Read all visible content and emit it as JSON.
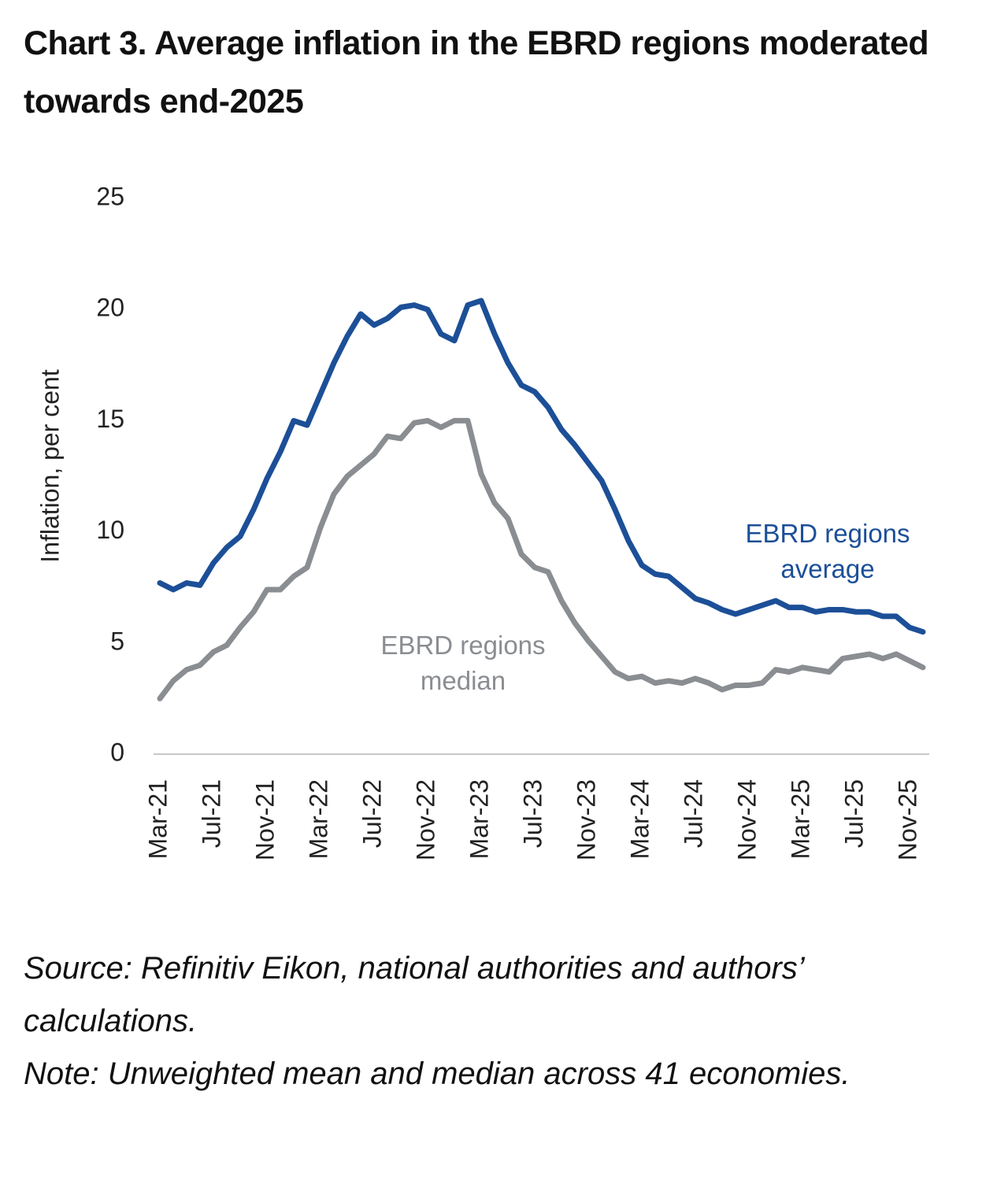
{
  "chart_data": {
    "type": "line",
    "title": "Chart 3. Average inflation in the EBRD regions moderated towards end-2025",
    "ylabel": "Inflation, per cent",
    "source": "Source: Refinitiv Eikon, national authorities and authors’ calculations.",
    "note": "Note: Unweighted mean and median across 41 economies.",
    "categories": [
      "Mar-21",
      null,
      null,
      null,
      "Jul-21",
      null,
      null,
      null,
      "Nov-21",
      null,
      null,
      null,
      "Mar-22",
      null,
      null,
      null,
      "Jul-22",
      null,
      null,
      null,
      "Nov-22",
      null,
      null,
      null,
      "Mar-23",
      null,
      null,
      null,
      "Jul-23",
      null,
      null,
      null,
      "Nov-23",
      null,
      null,
      null,
      "Mar-24",
      null,
      null,
      null,
      "Jul-24",
      null,
      null,
      null,
      "Nov-24",
      null,
      null,
      null,
      "Mar-25",
      null,
      null,
      null,
      "Jul-25",
      null,
      null,
      null,
      "Nov-25",
      null
    ],
    "series": [
      {
        "name": "EBRD regions average",
        "color": "#1c4f97",
        "values": [
          7.7,
          7.4,
          7.7,
          7.6,
          8.6,
          9.3,
          9.8,
          11.0,
          12.4,
          13.6,
          15.0,
          14.8,
          16.2,
          17.6,
          18.8,
          19.8,
          19.3,
          19.6,
          20.1,
          20.2,
          20.0,
          18.9,
          18.6,
          20.2,
          20.4,
          18.9,
          17.6,
          16.6,
          16.3,
          15.6,
          14.6,
          13.9,
          13.1,
          12.3,
          11.0,
          9.6,
          8.5,
          8.1,
          8.0,
          7.5,
          7.0,
          6.8,
          6.5,
          6.3,
          6.5,
          6.7,
          6.9,
          6.6,
          6.6,
          6.4,
          6.5,
          6.5,
          6.4,
          6.4,
          6.2,
          6.2,
          5.7,
          5.5
        ]
      },
      {
        "name": "EBRD regions median",
        "color": "#8a8d91",
        "values": [
          2.5,
          3.3,
          3.8,
          4.0,
          4.6,
          4.9,
          5.7,
          6.4,
          7.4,
          7.4,
          8.0,
          8.4,
          10.2,
          11.7,
          12.5,
          13.0,
          13.5,
          14.3,
          14.2,
          14.9,
          15.0,
          14.7,
          15.0,
          15.0,
          12.6,
          11.3,
          10.6,
          9.0,
          8.4,
          8.2,
          6.9,
          5.9,
          5.1,
          4.4,
          3.7,
          3.4,
          3.5,
          3.2,
          3.3,
          3.2,
          3.4,
          3.2,
          2.9,
          3.1,
          3.1,
          3.2,
          3.8,
          3.7,
          3.9,
          3.8,
          3.7,
          4.3,
          4.4,
          4.5,
          4.3,
          4.5,
          4.2,
          3.9
        ]
      }
    ],
    "ylim": [
      0,
      25
    ],
    "yticks": [
      0,
      5,
      10,
      15,
      20,
      25
    ],
    "grid": false
  }
}
